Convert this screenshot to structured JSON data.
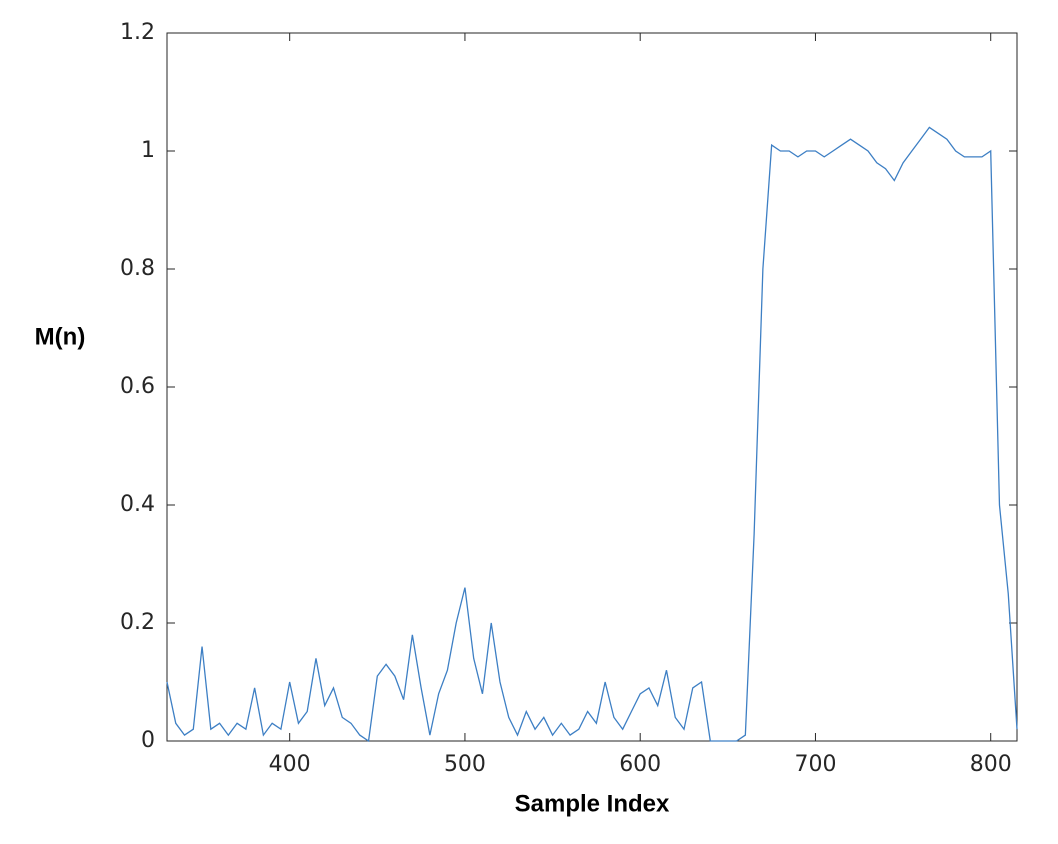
{
  "chart_data": {
    "type": "line",
    "x_label": "Sample Index",
    "y_label": "M(n)",
    "x": [
      330,
      335,
      340,
      345,
      350,
      355,
      360,
      365,
      370,
      375,
      380,
      385,
      390,
      395,
      400,
      405,
      410,
      415,
      420,
      425,
      430,
      435,
      440,
      445,
      450,
      455,
      460,
      465,
      470,
      475,
      480,
      485,
      490,
      495,
      500,
      505,
      510,
      515,
      520,
      525,
      530,
      535,
      540,
      545,
      550,
      555,
      560,
      565,
      570,
      575,
      580,
      585,
      590,
      595,
      600,
      605,
      610,
      615,
      620,
      625,
      630,
      635,
      640,
      645,
      650,
      655,
      660,
      665,
      670,
      675,
      680,
      685,
      690,
      695,
      700,
      705,
      710,
      715,
      720,
      725,
      730,
      735,
      740,
      745,
      750,
      755,
      760,
      765,
      770,
      775,
      780,
      785,
      790,
      795,
      800,
      805,
      810,
      815
    ],
    "series": [
      {
        "color": "#3d7fc4",
        "values": [
          0.1,
          0.03,
          0.01,
          0.02,
          0.16,
          0.02,
          0.03,
          0.01,
          0.03,
          0.02,
          0.09,
          0.01,
          0.03,
          0.02,
          0.1,
          0.03,
          0.05,
          0.14,
          0.06,
          0.09,
          0.04,
          0.03,
          0.01,
          0.0,
          0.11,
          0.13,
          0.11,
          0.07,
          0.18,
          0.09,
          0.01,
          0.08,
          0.12,
          0.2,
          0.26,
          0.14,
          0.08,
          0.2,
          0.1,
          0.04,
          0.01,
          0.05,
          0.02,
          0.04,
          0.01,
          0.03,
          0.01,
          0.02,
          0.05,
          0.03,
          0.1,
          0.04,
          0.02,
          0.05,
          0.08,
          0.09,
          0.06,
          0.12,
          0.04,
          0.02,
          0.09,
          0.1,
          0.0,
          0.0,
          0.0,
          0.0,
          0.01,
          0.35,
          0.8,
          1.01,
          1.0,
          1.0,
          0.99,
          1.0,
          1.0,
          0.99,
          1.0,
          1.01,
          1.02,
          1.01,
          1.0,
          0.98,
          0.97,
          0.95,
          0.98,
          1.0,
          1.02,
          1.04,
          1.03,
          1.02,
          1.0,
          0.99,
          0.99,
          0.99,
          1.0,
          0.4,
          0.25,
          0.02
        ]
      }
    ],
    "xlim": [
      330,
      815
    ],
    "ylim": [
      0,
      1.2
    ],
    "xticks": [
      400,
      500,
      600,
      700,
      800
    ],
    "yticks": [
      0,
      0.2,
      0.4,
      0.6,
      0.8,
      1,
      1.2
    ],
    "grid": false
  }
}
